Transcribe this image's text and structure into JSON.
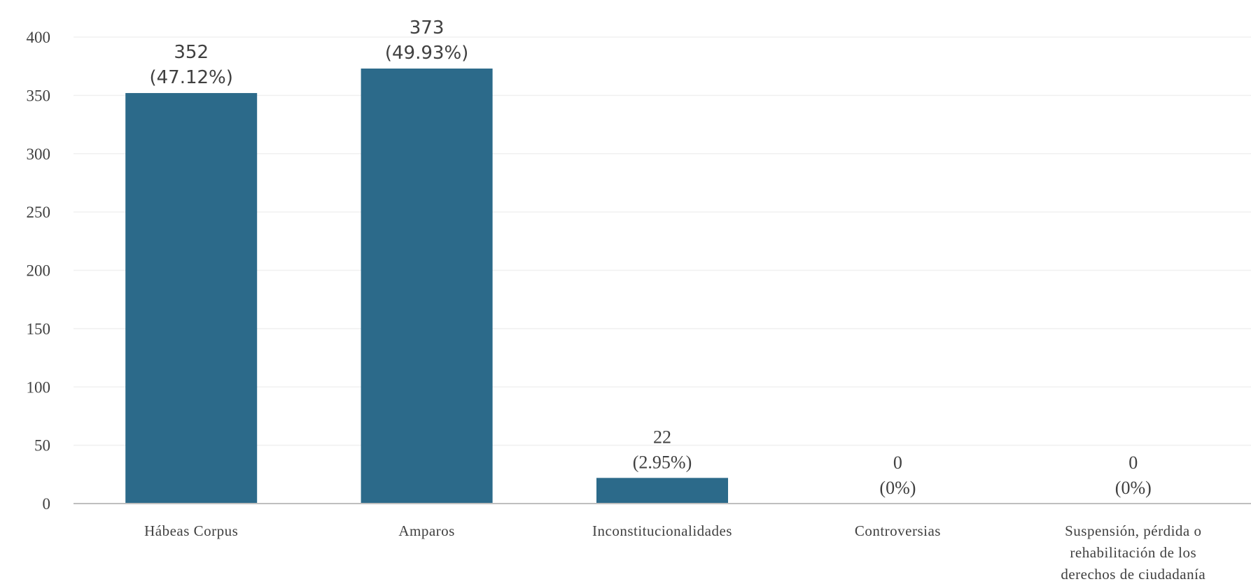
{
  "chart_data": {
    "type": "bar",
    "title": "",
    "xlabel": "",
    "ylabel": "",
    "ylim": [
      0,
      400
    ],
    "yticks": [
      0,
      50,
      100,
      150,
      200,
      250,
      300,
      350,
      400
    ],
    "grid": true,
    "legend": "none",
    "bar_color": "#2c6a8a",
    "categories": [
      [
        "Hábeas Corpus"
      ],
      [
        "Amparos"
      ],
      [
        "Inconstitucionalidades"
      ],
      [
        "Controversias"
      ],
      [
        "Suspensión, pérdida o",
        "rehabilitación de los",
        "derechos de ciudadanía"
      ]
    ],
    "values": [
      352,
      373,
      22,
      0,
      0
    ],
    "labels": [
      [
        "352",
        "(47.12%)"
      ],
      [
        "373",
        "(49.93%)"
      ],
      [
        "22",
        "(2.95%)"
      ],
      [
        "0",
        "(0%)"
      ],
      [
        "0",
        "(0%)"
      ]
    ]
  }
}
